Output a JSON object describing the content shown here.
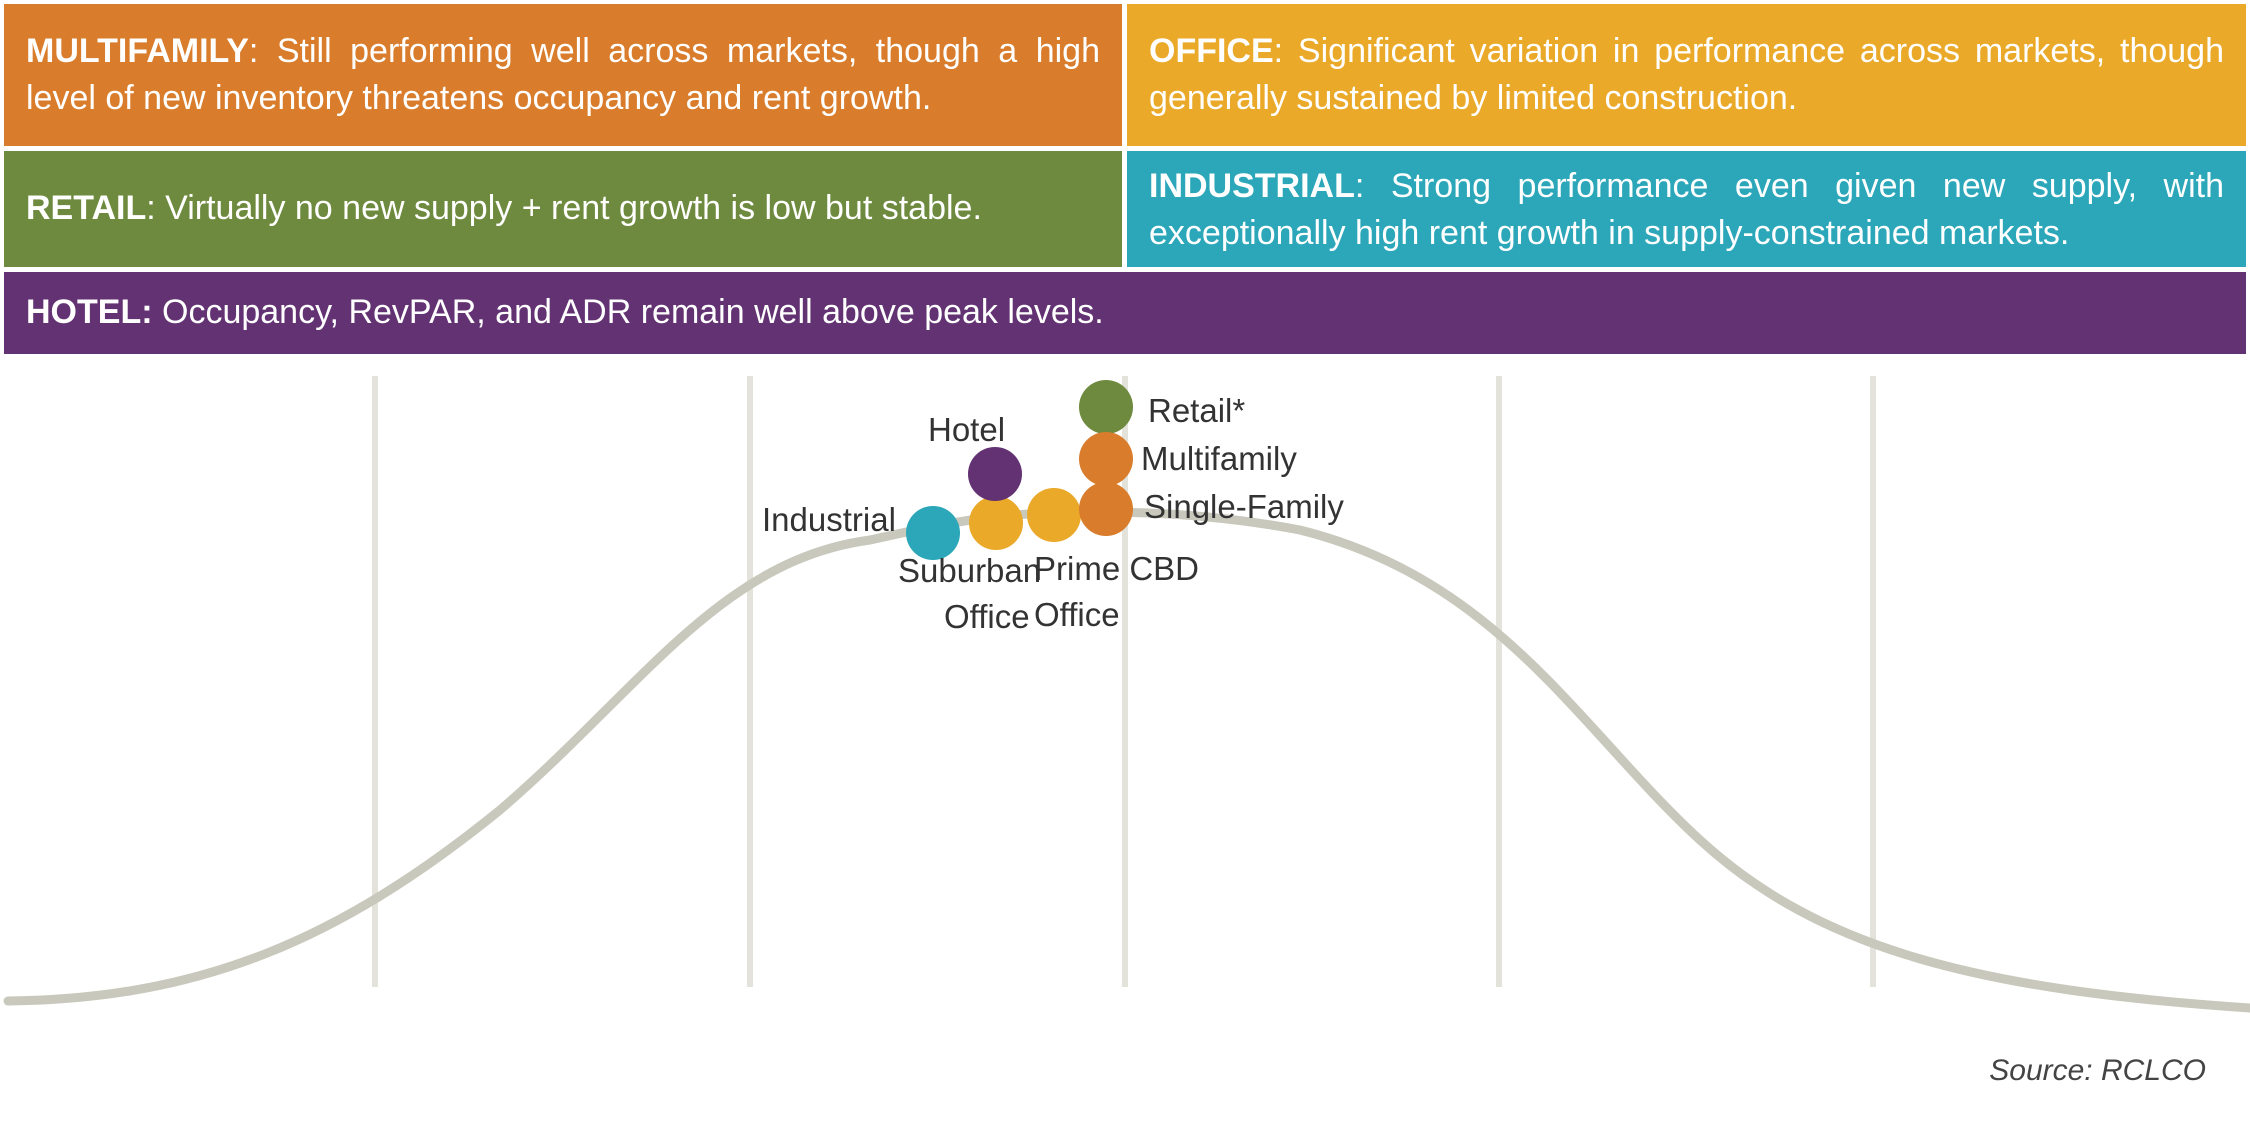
{
  "panels": {
    "multifamily": {
      "label": "MULTIFAMILY",
      "text": ": Still performing well across markets, though a high level of new inventory threatens occupancy and rent growth.",
      "color": "#D97C2B"
    },
    "office": {
      "label": "OFFICE",
      "text": ": Significant variation in performance across markets, though generally sustained by limited construction.",
      "color": "#EAA928"
    },
    "retail": {
      "label": "RETAIL",
      "text": ": Virtually no new supply + rent growth is low but stable.",
      "color": "#6E8A3E"
    },
    "industrial": {
      "label": "INDUSTRIAL",
      "text": ": Strong performance even given new supply, with exceptionally high rent growth in supply-constrained markets.",
      "color": "#2BA7B9"
    },
    "hotel": {
      "label": "HOTEL:",
      "text": " Occupancy, RevPAR, and ADR remain well above peak levels.",
      "color": "#633273"
    }
  },
  "diagram": {
    "curve_color": "#C8C8BC",
    "gridline_color": "#E3E3DC",
    "markers": {
      "industrial": {
        "label": "Industrial",
        "color": "#2BA7B9"
      },
      "suburban_office": {
        "label_line1": "Suburban",
        "label_line2": "Office",
        "color": "#EAA928"
      },
      "prime_cbd_office": {
        "label_line1": "Prime CBD",
        "label_line2": "Office",
        "color": "#EAA928"
      },
      "hotel": {
        "label": "Hotel",
        "color": "#633273"
      },
      "retail": {
        "label": "Retail*",
        "color": "#6E8A3E"
      },
      "multifamily": {
        "label": "Multifamily",
        "color": "#D97C2B"
      },
      "single_family": {
        "label": "Single-Family",
        "color": "#D97C2B"
      }
    },
    "source": "Source: RCLCO"
  }
}
